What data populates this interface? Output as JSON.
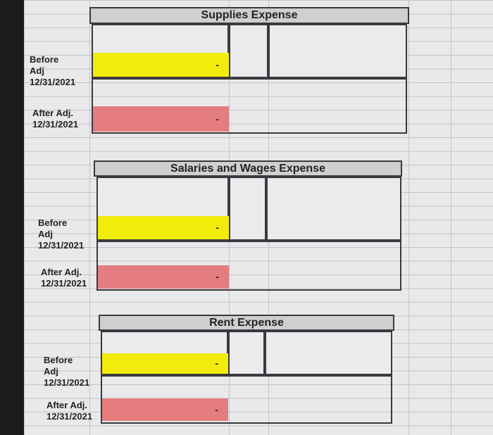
{
  "sections": [
    {
      "title": "Supplies Expense",
      "before_label": "Before Adj",
      "before_date": "12/31/2021",
      "before_value": "-",
      "after_label": "After Adj.",
      "after_date": "12/31/2021",
      "after_value": "-"
    },
    {
      "title": "Salaries and Wages Expense",
      "before_label": "Before Adj",
      "before_date": "12/31/2021",
      "before_value": "-",
      "after_label": "After Adj.",
      "after_date": "12/31/2021",
      "after_value": "-"
    },
    {
      "title": "Rent Expense",
      "before_label": "Before Adj",
      "before_date": "12/31/2021",
      "before_value": "-",
      "after_label": "After Adj.",
      "after_date": "12/31/2021",
      "after_value": "-"
    }
  ],
  "colors": {
    "before_fill": "#f2ec0b",
    "after_fill": "#e57c80",
    "header_fill": "#cfcfd2"
  }
}
